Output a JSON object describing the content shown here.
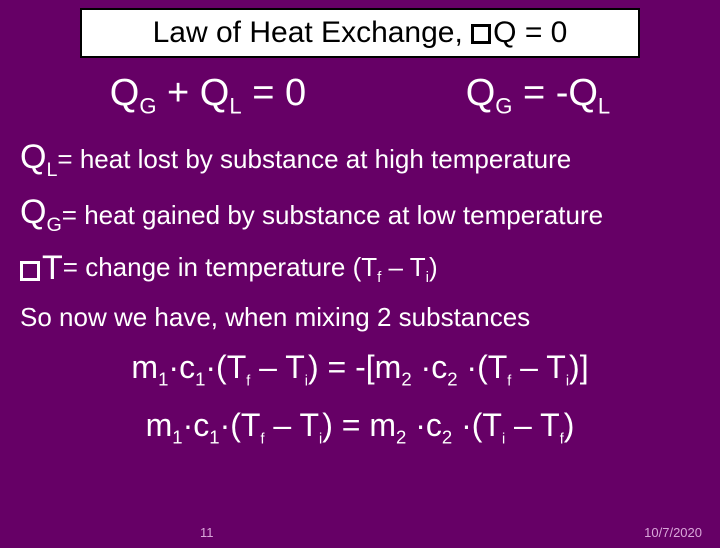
{
  "title": {
    "pre": "Law of Heat Exchange, ",
    "post": "Q = 0"
  },
  "eq": {
    "left_html": "Q<sub>G</sub>  +  Q<sub>L</sub> =  0",
    "right_html": "Q<sub>G</sub>  =  -Q<sub>L</sub>"
  },
  "defs": {
    "ql_lead": "Q<sub>L</sub>",
    "ql_rest": " = heat lost by substance at high temperature",
    "qg_lead": "Q<sub>G</sub>",
    "qg_rest": " = heat gained by substance at low temperature",
    "dt_lead_post": "T",
    "dt_rest": " = change in temperature (T<sub>f</sub> – T<sub>i</sub>)"
  },
  "mix": "So now we have, when mixing 2 substances",
  "formula1": "m<sub>1</sub><span class='dot'>·</span>c<sub>1</sub><span class='dot'>·</span>(T<span class='subsmall'>f</span> – T<span class='subsmall'>i</span>) = -[m<sub>2</sub> <span class='dot'>·</span>c<sub>2</sub> <span class='dot'>·</span>(T<span class='subsmall'>f</span> – T<span class='subsmall'>i</span>)]",
  "formula2": "m<sub>1</sub><span class='dot'>·</span>c<sub>1</sub><span class='dot'>·</span>(T<span class='subsmall'>f</span> – T<span class='subsmall'>i</span>) = m<sub>2</sub> <span class='dot'>·</span>c<sub>2</sub> <span class='dot'>·</span>(T<span class='subsmall'>i</span> – T<span class='subsmall'>f</span>)",
  "page": "11",
  "date": "10/7/2020"
}
